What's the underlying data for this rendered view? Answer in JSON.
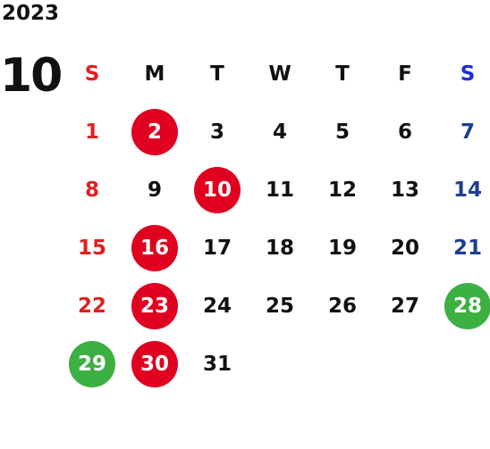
{
  "calendar": {
    "year": "2023",
    "month": "10",
    "weekdays": [
      "S",
      "M",
      "T",
      "W",
      "T",
      "F",
      "S"
    ],
    "leading_blanks": 0,
    "days": [
      {
        "n": "1"
      },
      {
        "n": "2",
        "mark": "red"
      },
      {
        "n": "3"
      },
      {
        "n": "4"
      },
      {
        "n": "5"
      },
      {
        "n": "6"
      },
      {
        "n": "7"
      },
      {
        "n": "8"
      },
      {
        "n": "9"
      },
      {
        "n": "10",
        "mark": "red"
      },
      {
        "n": "11"
      },
      {
        "n": "12"
      },
      {
        "n": "13"
      },
      {
        "n": "14"
      },
      {
        "n": "15"
      },
      {
        "n": "16",
        "mark": "red"
      },
      {
        "n": "17"
      },
      {
        "n": "18"
      },
      {
        "n": "19"
      },
      {
        "n": "20"
      },
      {
        "n": "21"
      },
      {
        "n": "22"
      },
      {
        "n": "23",
        "mark": "red"
      },
      {
        "n": "24"
      },
      {
        "n": "25"
      },
      {
        "n": "26"
      },
      {
        "n": "27"
      },
      {
        "n": "28",
        "mark": "green"
      },
      {
        "n": "29",
        "mark": "green"
      },
      {
        "n": "30",
        "mark": "red"
      },
      {
        "n": "31"
      }
    ]
  },
  "colors": {
    "sunday_text": "#e02020",
    "saturday_text": "#1d3f8f",
    "saturday_header": "#1a2fd6",
    "highlight_red": "#e0001f",
    "highlight_green": "#3cb043"
  }
}
